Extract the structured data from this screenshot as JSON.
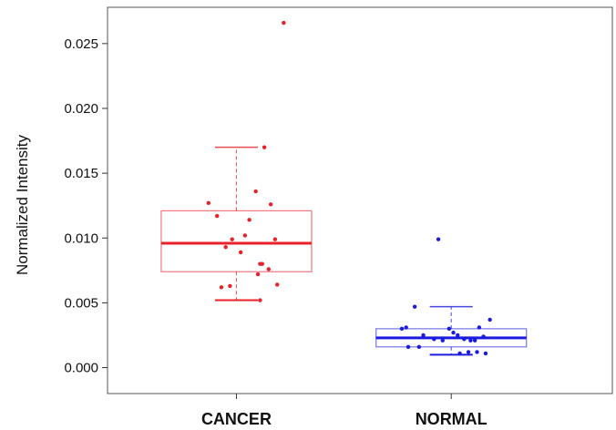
{
  "chart_data": {
    "type": "boxplot",
    "title": "",
    "xlabel": "",
    "ylabel": "Normalized Intensity",
    "ylim": [
      -0.002,
      0.0278
    ],
    "yticks": [
      0.0,
      0.005,
      0.01,
      0.015,
      0.02,
      0.025
    ],
    "ytick_labels": [
      "0.000",
      "0.005",
      "0.010",
      "0.015",
      "0.020",
      "0.025"
    ],
    "categories": [
      "CANCER",
      "NORMAL"
    ],
    "grid": false,
    "legend": "none",
    "series": [
      {
        "category": "CANCER",
        "color": "#e8202a",
        "stats": {
          "whisker_low": 0.0052,
          "q1": 0.0074,
          "median": 0.0096,
          "q3": 0.0121,
          "whisker_high": 0.017
        },
        "points": [
          [
            0.87,
            0.0127
          ],
          [
            0.91,
            0.0117
          ],
          [
            0.95,
            0.0093
          ],
          [
            0.98,
            0.0099
          ],
          [
            1.02,
            0.0089
          ],
          [
            1.04,
            0.0102
          ],
          [
            1.06,
            0.0114
          ],
          [
            1.09,
            0.0136
          ],
          [
            1.11,
            0.008
          ],
          [
            1.12,
            0.008
          ],
          [
            1.15,
            0.0076
          ],
          [
            1.1,
            0.0072
          ],
          [
            1.13,
            0.017
          ],
          [
            1.16,
            0.0126
          ],
          [
            1.18,
            0.0099
          ],
          [
            1.19,
            0.0064
          ],
          [
            0.93,
            0.0062
          ],
          [
            0.97,
            0.0063
          ],
          [
            1.11,
            0.0052
          ],
          [
            1.22,
            0.0266
          ]
        ]
      },
      {
        "category": "NORMAL",
        "color": "#1a1ae0",
        "stats": {
          "whisker_low": 0.001,
          "q1": 0.0016,
          "median": 0.0023,
          "q3": 0.003,
          "whisker_high": 0.0047
        },
        "points": [
          [
            1.77,
            0.003
          ],
          [
            1.79,
            0.0031
          ],
          [
            1.83,
            0.0047
          ],
          [
            1.87,
            0.0025
          ],
          [
            1.92,
            0.0022
          ],
          [
            1.96,
            0.0021
          ],
          [
            1.99,
            0.003
          ],
          [
            2.01,
            0.0027
          ],
          [
            2.03,
            0.0025
          ],
          [
            2.06,
            0.0022
          ],
          [
            2.09,
            0.0021
          ],
          [
            2.11,
            0.0021
          ],
          [
            2.13,
            0.0031
          ],
          [
            2.15,
            0.0024
          ],
          [
            2.18,
            0.0037
          ],
          [
            1.8,
            0.0016
          ],
          [
            1.85,
            0.0016
          ],
          [
            2.08,
            0.0012
          ],
          [
            2.12,
            0.0012
          ],
          [
            2.16,
            0.0011
          ],
          [
            2.04,
            0.0011
          ],
          [
            1.94,
            0.0099
          ]
        ]
      }
    ]
  }
}
